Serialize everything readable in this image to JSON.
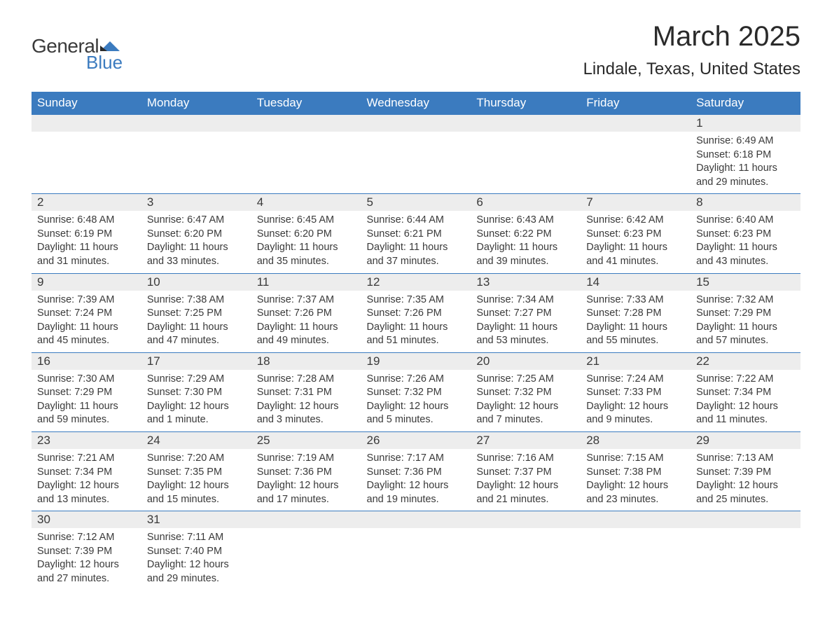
{
  "logo": {
    "general": "General",
    "blue": "Blue"
  },
  "title": "March 2025",
  "location": "Lindale, Texas, United States",
  "day_headers": [
    "Sunday",
    "Monday",
    "Tuesday",
    "Wednesday",
    "Thursday",
    "Friday",
    "Saturday"
  ],
  "colors": {
    "header_bg": "#3b7bbf",
    "header_text": "#ffffff",
    "daynum_bg": "#ededed",
    "text": "#3a3a3a",
    "logo_blue": "#3b7bbf",
    "row_border": "#3b7bbf",
    "page_bg": "#ffffff"
  },
  "typography": {
    "title_fontsize": 40,
    "location_fontsize": 24,
    "header_fontsize": 17,
    "daynum_fontsize": 17,
    "body_fontsize": 14.5
  },
  "layout": {
    "columns": 7,
    "rows": 6,
    "leading_blanks": 6,
    "trailing_blanks": 5
  },
  "weeks": [
    [
      {
        "blank": true
      },
      {
        "blank": true
      },
      {
        "blank": true
      },
      {
        "blank": true
      },
      {
        "blank": true
      },
      {
        "blank": true
      },
      {
        "num": "1",
        "sunrise": "Sunrise: 6:49 AM",
        "sunset": "Sunset: 6:18 PM",
        "day1": "Daylight: 11 hours",
        "day2": "and 29 minutes."
      }
    ],
    [
      {
        "num": "2",
        "sunrise": "Sunrise: 6:48 AM",
        "sunset": "Sunset: 6:19 PM",
        "day1": "Daylight: 11 hours",
        "day2": "and 31 minutes."
      },
      {
        "num": "3",
        "sunrise": "Sunrise: 6:47 AM",
        "sunset": "Sunset: 6:20 PM",
        "day1": "Daylight: 11 hours",
        "day2": "and 33 minutes."
      },
      {
        "num": "4",
        "sunrise": "Sunrise: 6:45 AM",
        "sunset": "Sunset: 6:20 PM",
        "day1": "Daylight: 11 hours",
        "day2": "and 35 minutes."
      },
      {
        "num": "5",
        "sunrise": "Sunrise: 6:44 AM",
        "sunset": "Sunset: 6:21 PM",
        "day1": "Daylight: 11 hours",
        "day2": "and 37 minutes."
      },
      {
        "num": "6",
        "sunrise": "Sunrise: 6:43 AM",
        "sunset": "Sunset: 6:22 PM",
        "day1": "Daylight: 11 hours",
        "day2": "and 39 minutes."
      },
      {
        "num": "7",
        "sunrise": "Sunrise: 6:42 AM",
        "sunset": "Sunset: 6:23 PM",
        "day1": "Daylight: 11 hours",
        "day2": "and 41 minutes."
      },
      {
        "num": "8",
        "sunrise": "Sunrise: 6:40 AM",
        "sunset": "Sunset: 6:23 PM",
        "day1": "Daylight: 11 hours",
        "day2": "and 43 minutes."
      }
    ],
    [
      {
        "num": "9",
        "sunrise": "Sunrise: 7:39 AM",
        "sunset": "Sunset: 7:24 PM",
        "day1": "Daylight: 11 hours",
        "day2": "and 45 minutes."
      },
      {
        "num": "10",
        "sunrise": "Sunrise: 7:38 AM",
        "sunset": "Sunset: 7:25 PM",
        "day1": "Daylight: 11 hours",
        "day2": "and 47 minutes."
      },
      {
        "num": "11",
        "sunrise": "Sunrise: 7:37 AM",
        "sunset": "Sunset: 7:26 PM",
        "day1": "Daylight: 11 hours",
        "day2": "and 49 minutes."
      },
      {
        "num": "12",
        "sunrise": "Sunrise: 7:35 AM",
        "sunset": "Sunset: 7:26 PM",
        "day1": "Daylight: 11 hours",
        "day2": "and 51 minutes."
      },
      {
        "num": "13",
        "sunrise": "Sunrise: 7:34 AM",
        "sunset": "Sunset: 7:27 PM",
        "day1": "Daylight: 11 hours",
        "day2": "and 53 minutes."
      },
      {
        "num": "14",
        "sunrise": "Sunrise: 7:33 AM",
        "sunset": "Sunset: 7:28 PM",
        "day1": "Daylight: 11 hours",
        "day2": "and 55 minutes."
      },
      {
        "num": "15",
        "sunrise": "Sunrise: 7:32 AM",
        "sunset": "Sunset: 7:29 PM",
        "day1": "Daylight: 11 hours",
        "day2": "and 57 minutes."
      }
    ],
    [
      {
        "num": "16",
        "sunrise": "Sunrise: 7:30 AM",
        "sunset": "Sunset: 7:29 PM",
        "day1": "Daylight: 11 hours",
        "day2": "and 59 minutes."
      },
      {
        "num": "17",
        "sunrise": "Sunrise: 7:29 AM",
        "sunset": "Sunset: 7:30 PM",
        "day1": "Daylight: 12 hours",
        "day2": "and 1 minute."
      },
      {
        "num": "18",
        "sunrise": "Sunrise: 7:28 AM",
        "sunset": "Sunset: 7:31 PM",
        "day1": "Daylight: 12 hours",
        "day2": "and 3 minutes."
      },
      {
        "num": "19",
        "sunrise": "Sunrise: 7:26 AM",
        "sunset": "Sunset: 7:32 PM",
        "day1": "Daylight: 12 hours",
        "day2": "and 5 minutes."
      },
      {
        "num": "20",
        "sunrise": "Sunrise: 7:25 AM",
        "sunset": "Sunset: 7:32 PM",
        "day1": "Daylight: 12 hours",
        "day2": "and 7 minutes."
      },
      {
        "num": "21",
        "sunrise": "Sunrise: 7:24 AM",
        "sunset": "Sunset: 7:33 PM",
        "day1": "Daylight: 12 hours",
        "day2": "and 9 minutes."
      },
      {
        "num": "22",
        "sunrise": "Sunrise: 7:22 AM",
        "sunset": "Sunset: 7:34 PM",
        "day1": "Daylight: 12 hours",
        "day2": "and 11 minutes."
      }
    ],
    [
      {
        "num": "23",
        "sunrise": "Sunrise: 7:21 AM",
        "sunset": "Sunset: 7:34 PM",
        "day1": "Daylight: 12 hours",
        "day2": "and 13 minutes."
      },
      {
        "num": "24",
        "sunrise": "Sunrise: 7:20 AM",
        "sunset": "Sunset: 7:35 PM",
        "day1": "Daylight: 12 hours",
        "day2": "and 15 minutes."
      },
      {
        "num": "25",
        "sunrise": "Sunrise: 7:19 AM",
        "sunset": "Sunset: 7:36 PM",
        "day1": "Daylight: 12 hours",
        "day2": "and 17 minutes."
      },
      {
        "num": "26",
        "sunrise": "Sunrise: 7:17 AM",
        "sunset": "Sunset: 7:36 PM",
        "day1": "Daylight: 12 hours",
        "day2": "and 19 minutes."
      },
      {
        "num": "27",
        "sunrise": "Sunrise: 7:16 AM",
        "sunset": "Sunset: 7:37 PM",
        "day1": "Daylight: 12 hours",
        "day2": "and 21 minutes."
      },
      {
        "num": "28",
        "sunrise": "Sunrise: 7:15 AM",
        "sunset": "Sunset: 7:38 PM",
        "day1": "Daylight: 12 hours",
        "day2": "and 23 minutes."
      },
      {
        "num": "29",
        "sunrise": "Sunrise: 7:13 AM",
        "sunset": "Sunset: 7:39 PM",
        "day1": "Daylight: 12 hours",
        "day2": "and 25 minutes."
      }
    ],
    [
      {
        "num": "30",
        "sunrise": "Sunrise: 7:12 AM",
        "sunset": "Sunset: 7:39 PM",
        "day1": "Daylight: 12 hours",
        "day2": "and 27 minutes."
      },
      {
        "num": "31",
        "sunrise": "Sunrise: 7:11 AM",
        "sunset": "Sunset: 7:40 PM",
        "day1": "Daylight: 12 hours",
        "day2": "and 29 minutes."
      },
      {
        "blank": true
      },
      {
        "blank": true
      },
      {
        "blank": true
      },
      {
        "blank": true
      },
      {
        "blank": true
      }
    ]
  ]
}
